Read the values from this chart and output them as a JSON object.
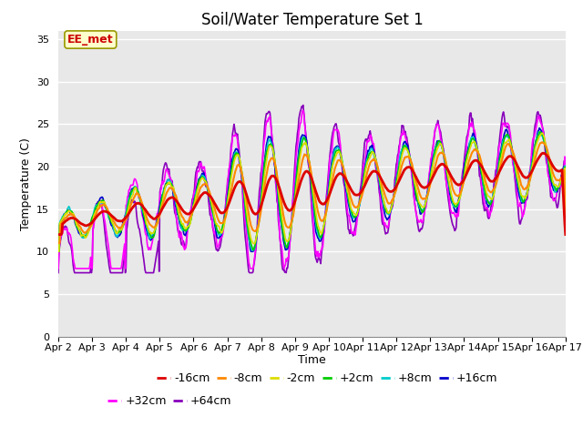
{
  "title": "Soil/Water Temperature Set 1",
  "xlabel": "Time",
  "ylabel": "Temperature (C)",
  "ylim": [
    0,
    36
  ],
  "yticks": [
    0,
    5,
    10,
    15,
    20,
    25,
    30,
    35
  ],
  "xtick_labels": [
    "Apr 2",
    "Apr 3",
    "Apr 4",
    "Apr 5",
    "Apr 6",
    "Apr 7",
    "Apr 8",
    "Apr 9",
    "Apr 10",
    "Apr 11",
    "Apr 12",
    "Apr 13",
    "Apr 14",
    "Apr 15",
    "Apr 16",
    "Apr 17"
  ],
  "annotation_text": "EE_met",
  "annotation_color": "#cc0000",
  "annotation_bg": "#ffffcc",
  "annotation_border": "#999900",
  "series_colors": {
    "-16cm": "#dd0000",
    "-8cm": "#ff8800",
    "-2cm": "#dddd00",
    "+2cm": "#00cc00",
    "+8cm": "#00cccc",
    "+16cm": "#0000cc",
    "+32cm": "#ff00ff",
    "+64cm": "#8800bb"
  },
  "bg_color": "#e8e8e8",
  "fig_bg": "#ffffff",
  "grid_color": "#ffffff",
  "title_fontsize": 12,
  "axis_label_fontsize": 9,
  "tick_fontsize": 8,
  "legend_fontsize": 9
}
